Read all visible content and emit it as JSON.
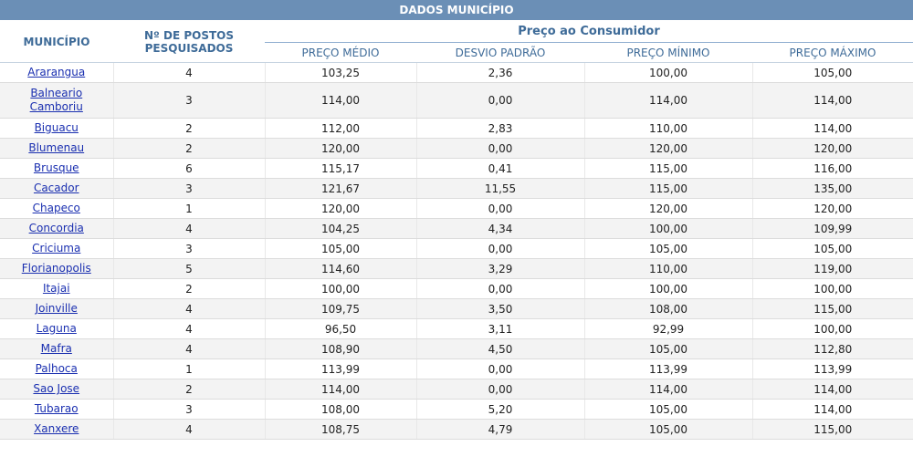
{
  "title": "DADOS MUNICÍPIO",
  "headers": {
    "municipio": "MUNICÍPIO",
    "postos_line1": "Nº DE POSTOS",
    "postos_line2": "PESQUISADOS",
    "group": "Preço ao Consumidor",
    "preco_medio": "PREÇO MÉDIO",
    "desvio_padrao": "DESVIO PADRÃO",
    "preco_minimo": "PREÇO MÍNIMO",
    "preco_maximo": "PREÇO MÁXIMO"
  },
  "rows": [
    {
      "municipio": "Ararangua",
      "postos": "4",
      "medio": "103,25",
      "desvio": "2,36",
      "minimo": "100,00",
      "maximo": "105,00"
    },
    {
      "municipio": "Balneario Camboriu",
      "postos": "3",
      "medio": "114,00",
      "desvio": "0,00",
      "minimo": "114,00",
      "maximo": "114,00"
    },
    {
      "municipio": "Biguacu",
      "postos": "2",
      "medio": "112,00",
      "desvio": "2,83",
      "minimo": "110,00",
      "maximo": "114,00"
    },
    {
      "municipio": "Blumenau",
      "postos": "2",
      "medio": "120,00",
      "desvio": "0,00",
      "minimo": "120,00",
      "maximo": "120,00"
    },
    {
      "municipio": "Brusque",
      "postos": "6",
      "medio": "115,17",
      "desvio": "0,41",
      "minimo": "115,00",
      "maximo": "116,00"
    },
    {
      "municipio": "Cacador",
      "postos": "3",
      "medio": "121,67",
      "desvio": "11,55",
      "minimo": "115,00",
      "maximo": "135,00"
    },
    {
      "municipio": "Chapeco",
      "postos": "1",
      "medio": "120,00",
      "desvio": "0,00",
      "minimo": "120,00",
      "maximo": "120,00"
    },
    {
      "municipio": "Concordia",
      "postos": "4",
      "medio": "104,25",
      "desvio": "4,34",
      "minimo": "100,00",
      "maximo": "109,99"
    },
    {
      "municipio": "Criciuma",
      "postos": "3",
      "medio": "105,00",
      "desvio": "0,00",
      "minimo": "105,00",
      "maximo": "105,00"
    },
    {
      "municipio": "Florianopolis",
      "postos": "5",
      "medio": "114,60",
      "desvio": "3,29",
      "minimo": "110,00",
      "maximo": "119,00"
    },
    {
      "municipio": "Itajai",
      "postos": "2",
      "medio": "100,00",
      "desvio": "0,00",
      "minimo": "100,00",
      "maximo": "100,00"
    },
    {
      "municipio": "Joinville",
      "postos": "4",
      "medio": "109,75",
      "desvio": "3,50",
      "minimo": "108,00",
      "maximo": "115,00"
    },
    {
      "municipio": "Laguna",
      "postos": "4",
      "medio": "96,50",
      "desvio": "3,11",
      "minimo": "92,99",
      "maximo": "100,00"
    },
    {
      "municipio": "Mafra",
      "postos": "4",
      "medio": "108,90",
      "desvio": "4,50",
      "minimo": "105,00",
      "maximo": "112,80"
    },
    {
      "municipio": "Palhoca",
      "postos": "1",
      "medio": "113,99",
      "desvio": "0,00",
      "minimo": "113,99",
      "maximo": "113,99"
    },
    {
      "municipio": "Sao Jose",
      "postos": "2",
      "medio": "114,00",
      "desvio": "0,00",
      "minimo": "114,00",
      "maximo": "114,00"
    },
    {
      "municipio": "Tubarao",
      "postos": "3",
      "medio": "108,00",
      "desvio": "5,20",
      "minimo": "105,00",
      "maximo": "114,00"
    },
    {
      "municipio": "Xanxere",
      "postos": "4",
      "medio": "108,75",
      "desvio": "4,79",
      "minimo": "105,00",
      "maximo": "115,00"
    }
  ]
}
